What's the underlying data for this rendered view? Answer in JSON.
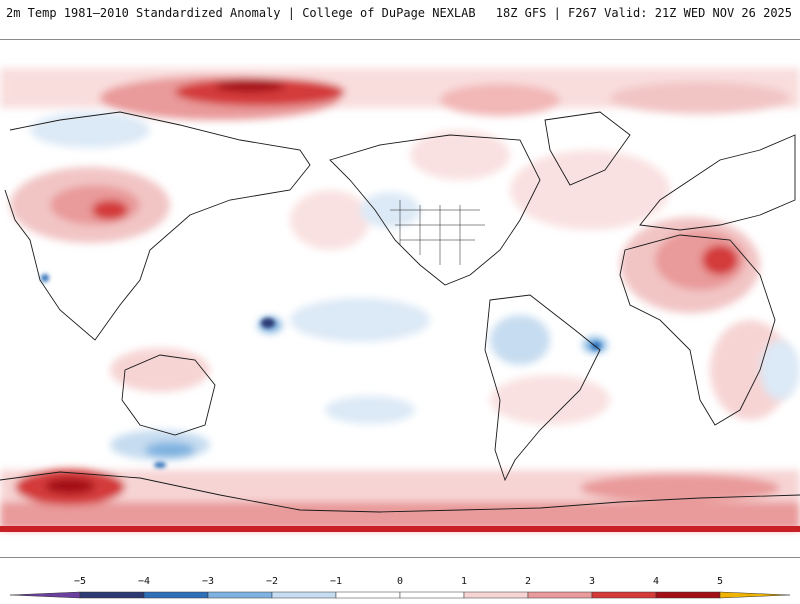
{
  "header": {
    "title_left": "2m Temp 1981–2010 Standardized Anomaly | College of DuPage NEXLAB",
    "title_right": "18Z GFS | F267 Valid: 21Z WED NOV 26 2025"
  },
  "colorbar": {
    "ticks": [
      "−5",
      "−4",
      "−3",
      "−2",
      "−1",
      "0",
      "1",
      "2",
      "3",
      "4",
      "5"
    ],
    "colors": [
      "#2b3a73",
      "#2f6fb8",
      "#7fb2e0",
      "#c6dcf0",
      "#ffffff",
      "#ffffff",
      "#f7d4d4",
      "#e99a9a",
      "#d43a3a",
      "#a30f16"
    ],
    "left_cap_color": "#6a3fa0",
    "right_cap_color": "#f0b400"
  }
}
